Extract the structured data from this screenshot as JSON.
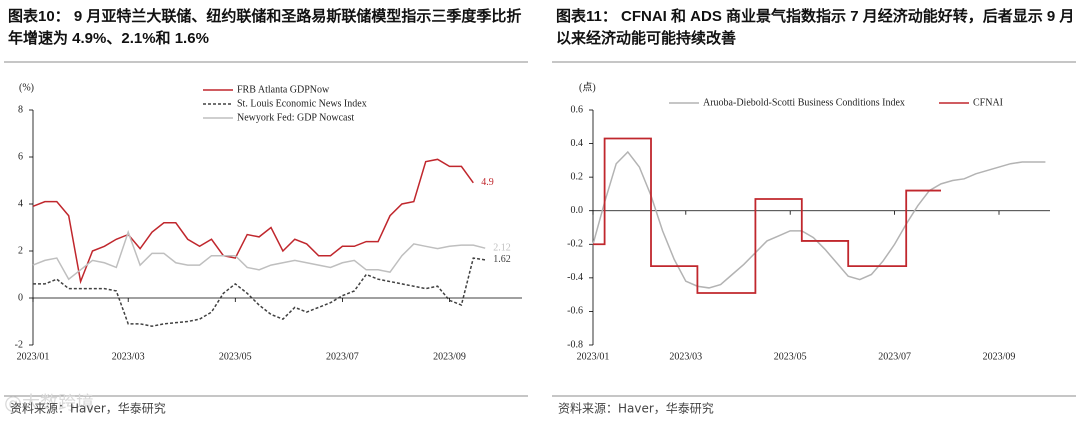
{
  "watermark": "@大数跨境",
  "chart_data": [
    {
      "type": "line",
      "title": "图表10： 9 月亚特兰大联储、纽约联储和圣路易斯联储模型指示三季度季比折年增速为 4.9%、2.1%和 1.6%",
      "y_unit": "(%)",
      "source": "资料来源：Haver，华泰研究",
      "legend": "upper right",
      "categories": [
        "2023/01",
        null,
        null,
        null,
        null,
        null,
        null,
        null,
        "2023/03",
        null,
        null,
        null,
        null,
        null,
        null,
        null,
        null,
        "2023/05",
        null,
        null,
        null,
        null,
        null,
        null,
        null,
        null,
        "2023/07",
        null,
        null,
        null,
        null,
        null,
        null,
        null,
        null,
        "2023/09",
        null,
        null,
        null,
        null
      ],
      "ylim": [
        -2,
        8
      ],
      "yticks": [
        -2,
        0,
        2,
        4,
        6,
        8
      ],
      "series": [
        {
          "name": "FRB Atlanta GDPNow",
          "color": "#c0272d",
          "end_label": "4.9",
          "values": [
            3.9,
            4.1,
            4.1,
            3.5,
            0.7,
            2.0,
            2.2,
            2.5,
            2.7,
            2.1,
            2.8,
            3.2,
            3.2,
            2.5,
            2.2,
            2.5,
            1.8,
            1.7,
            2.7,
            2.6,
            3.0,
            2.0,
            2.5,
            2.3,
            1.8,
            1.8,
            2.2,
            2.2,
            2.4,
            2.4,
            3.5,
            4.0,
            4.1,
            5.8,
            5.9,
            5.6,
            5.6,
            4.9,
            null,
            null
          ]
        },
        {
          "name": "St. Louis Economic News Index",
          "color": "#404040",
          "dash": true,
          "end_label": "1.62",
          "values": [
            0.6,
            0.6,
            0.8,
            0.4,
            0.4,
            0.4,
            0.4,
            0.3,
            -1.1,
            -1.1,
            -1.2,
            -1.1,
            -1.05,
            -1.0,
            -0.9,
            -0.6,
            0.2,
            0.6,
            0.2,
            -0.3,
            -0.7,
            -0.9,
            -0.4,
            -0.6,
            -0.4,
            -0.2,
            0.1,
            0.3,
            1.0,
            0.8,
            0.7,
            0.6,
            0.5,
            0.4,
            0.5,
            -0.1,
            -0.3,
            1.7,
            1.62,
            null
          ]
        },
        {
          "name": "Newyork Fed: GDP Nowcast",
          "color": "#bfbfbf",
          "end_label": "2.12",
          "values": [
            1.4,
            1.6,
            1.7,
            0.8,
            1.2,
            1.6,
            1.5,
            1.3,
            2.8,
            1.4,
            1.9,
            1.9,
            1.5,
            1.4,
            1.4,
            1.8,
            1.8,
            1.8,
            1.3,
            1.2,
            1.4,
            1.5,
            1.6,
            1.5,
            1.4,
            1.3,
            1.5,
            1.6,
            1.2,
            1.2,
            1.1,
            1.8,
            2.3,
            2.2,
            2.1,
            2.2,
            2.25,
            2.25,
            2.12,
            null
          ]
        }
      ]
    },
    {
      "type": "line",
      "title": "图表11： CFNAI 和 ADS 商业景气指数指示 7 月经济动能好转，后者显示 9 月以来经济动能可能持续改善",
      "y_unit": "(点)",
      "source": "资料来源：Haver，华泰研究",
      "legend": "top",
      "categories": [
        "2023/01",
        null,
        null,
        null,
        null,
        null,
        null,
        null,
        "2023/03",
        null,
        null,
        null,
        null,
        null,
        null,
        null,
        null,
        "2023/05",
        null,
        null,
        null,
        null,
        null,
        null,
        null,
        null,
        "2023/07",
        null,
        null,
        null,
        null,
        null,
        null,
        null,
        null,
        "2023/09",
        null,
        null,
        null,
        null
      ],
      "ylim": [
        -0.8,
        0.6
      ],
      "yticks": [
        -0.8,
        -0.6,
        -0.4,
        -0.2,
        {
          "value": 0,
          "label": "0.0"
        },
        0.2,
        0.4,
        0.6
      ],
      "series": [
        {
          "name": "Aruoba-Diebold-Scotti Business Conditions Index",
          "color": "#b3b3b3",
          "values": [
            -0.2,
            0.05,
            0.28,
            0.35,
            0.26,
            0.09,
            -0.12,
            -0.29,
            -0.42,
            -0.45,
            -0.46,
            -0.44,
            -0.38,
            -0.32,
            -0.25,
            -0.18,
            -0.15,
            -0.12,
            -0.12,
            -0.16,
            -0.23,
            -0.31,
            -0.39,
            -0.41,
            -0.38,
            -0.3,
            -0.2,
            -0.08,
            0.03,
            0.12,
            0.16,
            0.18,
            0.19,
            0.22,
            0.24,
            0.26,
            0.28,
            0.29,
            0.29,
            0.29
          ]
        },
        {
          "name": "CFNAI",
          "color": "#c0272d",
          "step": true,
          "values": [
            -0.2,
            0.43,
            0.43,
            0.43,
            0.43,
            -0.33,
            -0.33,
            -0.33,
            -0.33,
            -0.49,
            -0.49,
            -0.49,
            -0.49,
            -0.49,
            0.07,
            0.07,
            0.07,
            0.07,
            -0.18,
            -0.18,
            -0.18,
            -0.18,
            -0.33,
            -0.33,
            -0.33,
            -0.33,
            -0.33,
            0.12,
            0.12,
            0.12,
            0.12,
            null,
            null,
            null,
            null,
            null,
            null,
            null,
            null,
            null
          ]
        }
      ]
    }
  ]
}
